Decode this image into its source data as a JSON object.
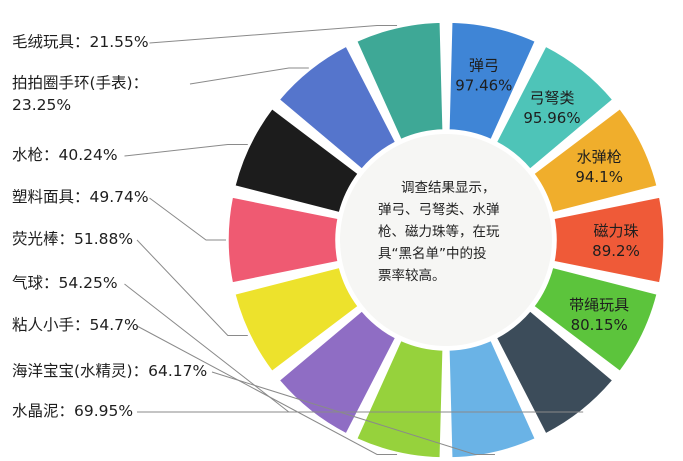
{
  "chart_data": {
    "type": "pie",
    "title": "",
    "center_text": [
      "调查结果显示，",
      "弹弓、弓弩类、水弹",
      "枪、磁力珠等，在玩",
      "具“黑名单”中的投",
      "票率较高。"
    ],
    "slices": [
      {
        "label": "弹弓",
        "value_text": "97.46%",
        "value": 97.46,
        "color": "#3f85d6"
      },
      {
        "label": "弓弩类",
        "value_text": "95.96%",
        "value": 95.96,
        "color": "#4ec4b8"
      },
      {
        "label": "水弹枪",
        "value_text": "94.1%",
        "value": 94.1,
        "color": "#f0ae2c"
      },
      {
        "label": "磁力珠",
        "value_text": "89.2%",
        "value": 89.2,
        "color": "#ef5a38"
      },
      {
        "label": "带绳玩具",
        "value_text": "80.15%",
        "value": 80.15,
        "color": "#5cc43c"
      },
      {
        "label": "水晶泥",
        "value_text": "69.95%",
        "value": 69.95,
        "color": "#3c4c5a"
      },
      {
        "label": "海洋宝宝(水精灵)",
        "value_text": "64.17%",
        "value": 64.17,
        "color": "#6ab3e6"
      },
      {
        "label": "粘人小手",
        "value_text": "54.7%",
        "value": 54.7,
        "color": "#96d23c"
      },
      {
        "label": "气球",
        "value_text": "54.25%",
        "value": 54.25,
        "color": "#8f6dc4"
      },
      {
        "label": "荧光棒",
        "value_text": "51.88%",
        "value": 51.88,
        "color": "#ede22c"
      },
      {
        "label": "塑料面具",
        "value_text": "49.74%",
        "value": 49.74,
        "color": "#ef5a72"
      },
      {
        "label": "水枪",
        "value_text": "40.24%",
        "value": 40.24,
        "color": "#1c1c1c"
      },
      {
        "label": "拍拍圈手环(手表)",
        "value_text": "23.25%",
        "value": 23.25,
        "color": "#5575cc"
      },
      {
        "label": "毛绒玩具",
        "value_text": "21.55%",
        "value": 21.55,
        "color": "#3ea896"
      }
    ],
    "legend": "left"
  }
}
